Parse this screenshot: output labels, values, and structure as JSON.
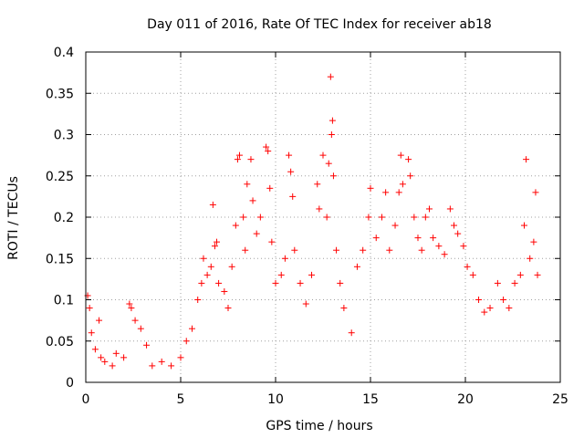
{
  "chart_data": {
    "type": "scatter",
    "title": "Day 011 of 2016, Rate Of TEC Index for receiver ab18",
    "xlabel": "GPS time / hours",
    "ylabel": "ROTI / TECUs",
    "xlim": [
      0,
      25
    ],
    "ylim": [
      0,
      0.4
    ],
    "xticks": [
      0,
      5,
      10,
      15,
      20,
      25
    ],
    "xtick_labels": [
      "0",
      "5",
      "10",
      "15",
      "20",
      "25"
    ],
    "yticks": [
      0,
      0.05,
      0.1,
      0.15,
      0.2,
      0.25,
      0.3,
      0.35,
      0.4
    ],
    "ytick_labels": [
      "0",
      "0.05",
      "0.1",
      "0.15",
      "0.2",
      "0.25",
      "0.3",
      "0.35",
      "0.4"
    ],
    "grid": true,
    "legend": "none",
    "marker": "+",
    "color": "#ff0000",
    "series": [
      {
        "points": [
          [
            0.1,
            0.105
          ],
          [
            0.2,
            0.09
          ],
          [
            0.3,
            0.06
          ],
          [
            0.5,
            0.04
          ],
          [
            0.8,
            0.03
          ],
          [
            1.0,
            0.025
          ],
          [
            1.4,
            0.02
          ],
          [
            0.7,
            0.075
          ],
          [
            1.6,
            0.035
          ],
          [
            2.0,
            0.03
          ],
          [
            2.3,
            0.095
          ],
          [
            2.4,
            0.09
          ],
          [
            2.6,
            0.075
          ],
          [
            2.9,
            0.065
          ],
          [
            3.2,
            0.045
          ],
          [
            3.5,
            0.02
          ],
          [
            4.0,
            0.025
          ],
          [
            4.5,
            0.02
          ],
          [
            5.0,
            0.03
          ],
          [
            5.3,
            0.05
          ],
          [
            5.6,
            0.065
          ],
          [
            5.9,
            0.1
          ],
          [
            6.1,
            0.12
          ],
          [
            6.2,
            0.15
          ],
          [
            6.4,
            0.13
          ],
          [
            6.6,
            0.14
          ],
          [
            6.8,
            0.165
          ],
          [
            6.9,
            0.17
          ],
          [
            6.7,
            0.215
          ],
          [
            7.0,
            0.12
          ],
          [
            7.3,
            0.11
          ],
          [
            7.5,
            0.09
          ],
          [
            7.7,
            0.14
          ],
          [
            7.9,
            0.19
          ],
          [
            8.0,
            0.27
          ],
          [
            8.1,
            0.275
          ],
          [
            8.3,
            0.2
          ],
          [
            8.4,
            0.16
          ],
          [
            8.5,
            0.24
          ],
          [
            8.7,
            0.27
          ],
          [
            8.8,
            0.22
          ],
          [
            9.0,
            0.18
          ],
          [
            9.2,
            0.2
          ],
          [
            9.5,
            0.285
          ],
          [
            9.6,
            0.28
          ],
          [
            9.7,
            0.235
          ],
          [
            9.8,
            0.17
          ],
          [
            10.0,
            0.12
          ],
          [
            10.3,
            0.13
          ],
          [
            10.5,
            0.15
          ],
          [
            10.7,
            0.275
          ],
          [
            10.8,
            0.255
          ],
          [
            10.9,
            0.225
          ],
          [
            11.0,
            0.16
          ],
          [
            11.3,
            0.12
          ],
          [
            11.6,
            0.095
          ],
          [
            11.9,
            0.13
          ],
          [
            12.2,
            0.24
          ],
          [
            12.3,
            0.21
          ],
          [
            12.5,
            0.275
          ],
          [
            12.7,
            0.2
          ],
          [
            12.8,
            0.265
          ],
          [
            12.9,
            0.37
          ],
          [
            13.0,
            0.317
          ],
          [
            12.95,
            0.3
          ],
          [
            13.05,
            0.25
          ],
          [
            13.2,
            0.16
          ],
          [
            13.4,
            0.12
          ],
          [
            13.6,
            0.09
          ],
          [
            14.0,
            0.06
          ],
          [
            14.3,
            0.14
          ],
          [
            14.6,
            0.16
          ],
          [
            14.9,
            0.2
          ],
          [
            15.0,
            0.235
          ],
          [
            15.3,
            0.175
          ],
          [
            15.6,
            0.2
          ],
          [
            15.8,
            0.23
          ],
          [
            16.0,
            0.16
          ],
          [
            16.3,
            0.19
          ],
          [
            16.5,
            0.23
          ],
          [
            16.6,
            0.275
          ],
          [
            16.7,
            0.24
          ],
          [
            17.0,
            0.27
          ],
          [
            17.1,
            0.25
          ],
          [
            17.3,
            0.2
          ],
          [
            17.5,
            0.175
          ],
          [
            17.7,
            0.16
          ],
          [
            17.9,
            0.2
          ],
          [
            18.1,
            0.21
          ],
          [
            18.3,
            0.175
          ],
          [
            18.6,
            0.165
          ],
          [
            18.9,
            0.155
          ],
          [
            19.2,
            0.21
          ],
          [
            19.4,
            0.19
          ],
          [
            19.6,
            0.18
          ],
          [
            19.9,
            0.165
          ],
          [
            20.1,
            0.14
          ],
          [
            20.4,
            0.13
          ],
          [
            20.7,
            0.1
          ],
          [
            21.0,
            0.085
          ],
          [
            21.3,
            0.09
          ],
          [
            21.7,
            0.12
          ],
          [
            22.0,
            0.1
          ],
          [
            22.3,
            0.09
          ],
          [
            22.6,
            0.12
          ],
          [
            22.9,
            0.13
          ],
          [
            23.1,
            0.19
          ],
          [
            23.2,
            0.27
          ],
          [
            23.4,
            0.15
          ],
          [
            23.6,
            0.17
          ],
          [
            23.7,
            0.23
          ],
          [
            23.8,
            0.13
          ]
        ]
      }
    ]
  }
}
